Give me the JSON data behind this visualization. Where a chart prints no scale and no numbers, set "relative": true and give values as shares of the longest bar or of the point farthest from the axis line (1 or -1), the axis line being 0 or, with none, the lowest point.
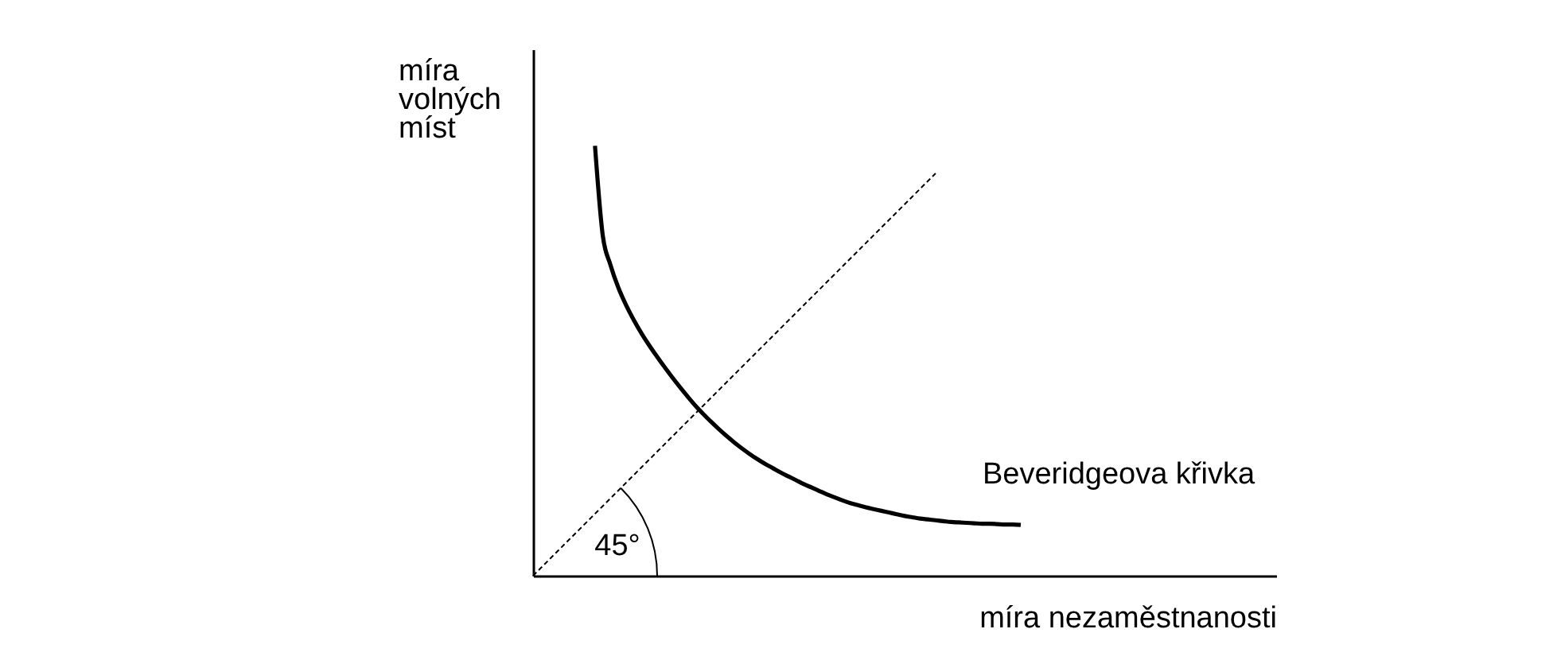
{
  "chart_data": {
    "type": "line",
    "relative": true,
    "xlabel": "míra nezaměstnanosti",
    "ylabel": "míra volných míst",
    "tick_labels": false,
    "grid": false,
    "annotations": [
      "45°"
    ],
    "categories": [
      null,
      null,
      null,
      null,
      null,
      null,
      null,
      null,
      null,
      null,
      null,
      null,
      null,
      null,
      null,
      null,
      null,
      null,
      null,
      null,
      null,
      null,
      null,
      null,
      null,
      null,
      null,
      null,
      null,
      null,
      null,
      null,
      null,
      null,
      null,
      null,
      null,
      null,
      null,
      null,
      null,
      null,
      null,
      null,
      null,
      null,
      null,
      null,
      null,
      null,
      null,
      null,
      null,
      null,
      null,
      null,
      null,
      null,
      null,
      null,
      null,
      null,
      null,
      null,
      null,
      null,
      null,
      null,
      null,
      null,
      null,
      null,
      null,
      null,
      null,
      null,
      null,
      null,
      null,
      null,
      null,
      null,
      null,
      null,
      null,
      null,
      null,
      null,
      null,
      null,
      null,
      null,
      null,
      null,
      null,
      null,
      null
    ],
    "series": [
      {
        "name": "Beveridgeova křivka",
        "color": "#000000",
        "line_style": "solid",
        "values": [
          null,
          null,
          null,
          null,
          null,
          null,
          null,
          null,
          1.0,
          0.792,
          0.723,
          0.671,
          0.63,
          0.595,
          0.564,
          0.536,
          0.51,
          0.485,
          0.461,
          0.438,
          0.416,
          0.395,
          0.376,
          0.358,
          0.341,
          0.325,
          0.31,
          0.296,
          0.283,
          0.271,
          0.26,
          0.25,
          0.24,
          0.231,
          0.222,
          0.213,
          0.205,
          0.197,
          0.189,
          0.182,
          0.175,
          0.169,
          0.164,
          0.159,
          0.155,
          0.151,
          0.147,
          0.143,
          0.139,
          0.136,
          0.133,
          0.131,
          0.129,
          0.127,
          0.125,
          0.124,
          0.123,
          0.122,
          0.121,
          0.121,
          0.12,
          0.119,
          0.119,
          0.118,
          null,
          null,
          null,
          null,
          null,
          null,
          null,
          null,
          null,
          null,
          null,
          null,
          null,
          null,
          null,
          null,
          null,
          null,
          null,
          null,
          null,
          null,
          null,
          null,
          null,
          null,
          null,
          null,
          null,
          null,
          null,
          null,
          null
        ]
      },
      {
        "color": "#000000",
        "line_style": "dashed",
        "values": [
          0,
          0.018,
          0.036,
          0.054,
          0.072,
          0.09,
          0.108,
          0.126,
          0.144,
          0.162,
          0.18,
          0.198,
          0.216,
          0.234,
          0.252,
          0.27,
          0.288,
          0.306,
          0.324,
          0.342,
          0.36,
          0.378,
          0.396,
          0.414,
          0.432,
          0.45,
          0.468,
          0.486,
          0.504,
          0.522,
          0.54,
          0.558,
          0.576,
          0.594,
          0.612,
          0.63,
          0.648,
          0.666,
          0.684,
          0.702,
          0.72,
          0.738,
          0.756,
          0.774,
          0.792,
          0.81,
          0.828,
          0.846,
          0.864,
          0.882,
          0.9,
          0.918,
          0.936,
          null,
          null,
          null,
          null,
          null,
          null,
          null,
          null,
          null,
          null,
          null,
          null,
          null,
          null,
          null,
          null,
          null,
          null,
          null,
          null,
          null,
          null,
          null,
          null,
          null,
          null,
          null,
          null,
          null,
          null,
          null,
          null,
          null,
          null,
          null,
          null,
          null,
          null,
          null,
          null,
          null,
          null,
          null,
          null
        ]
      }
    ]
  }
}
